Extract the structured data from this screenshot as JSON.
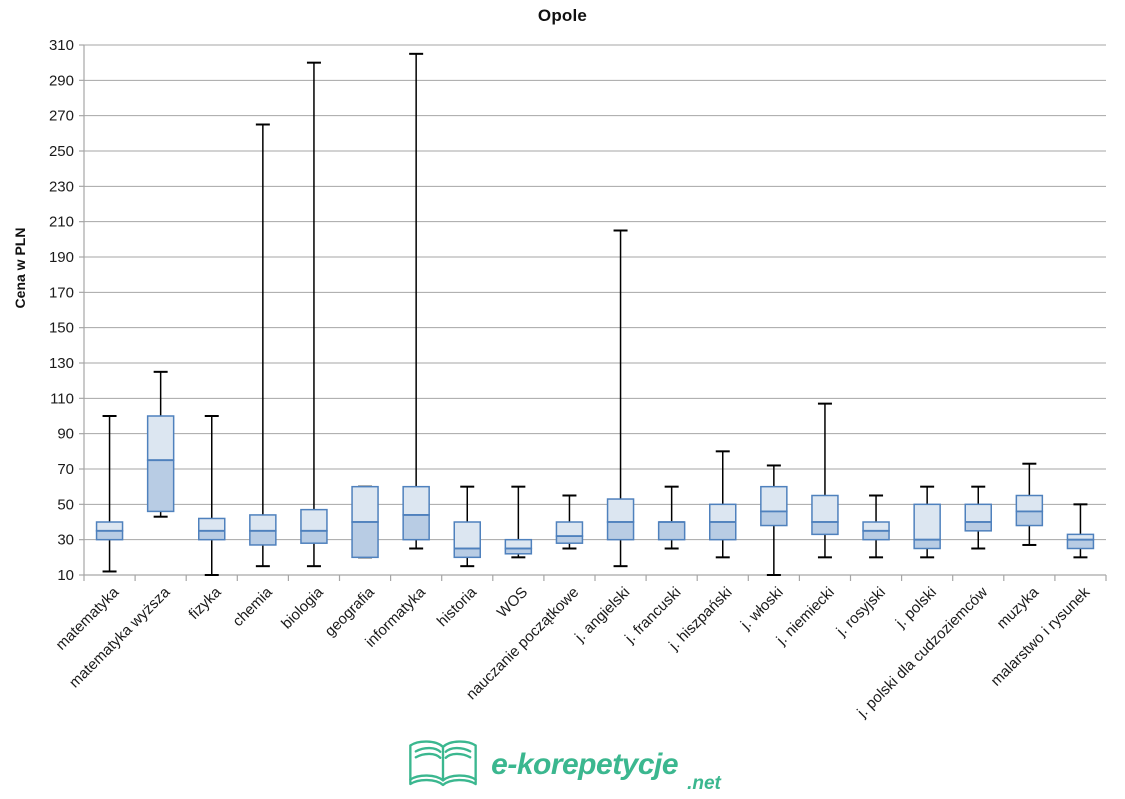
{
  "title": "Opole",
  "y_axis": {
    "label": "Cena w PLN"
  },
  "chart_data": {
    "type": "boxplot",
    "title": "Opole",
    "xlabel": "",
    "ylabel": "Cena w PLN",
    "ylim": [
      10,
      310
    ],
    "ytick_step": 20,
    "grid": true,
    "legend": false,
    "categories": [
      "matematyka",
      "matematyka wyższa",
      "fizyka",
      "chemia",
      "biologia",
      "geografia",
      "informatyka",
      "historia",
      "WOS",
      "nauczanie początkowe",
      "j. angielski",
      "j. francuski",
      "j. hiszpański",
      "j. włoski",
      "j. niemiecki",
      "j. rosyjski",
      "j. polski",
      "j. polski dla cudzoziemców",
      "muzyka",
      "malarstwo i rysunek"
    ],
    "boxes": [
      {
        "category": "matematyka",
        "min": 12,
        "q1": 30,
        "median": 35,
        "q3": 40,
        "max": 100
      },
      {
        "category": "matematyka wyższa",
        "min": 43,
        "q1": 46,
        "median": 75,
        "q3": 100,
        "max": 125
      },
      {
        "category": "fizyka",
        "min": 10,
        "q1": 30,
        "median": 35,
        "q3": 42,
        "max": 100
      },
      {
        "category": "chemia",
        "min": 15,
        "q1": 27,
        "median": 35,
        "q3": 44,
        "max": 265
      },
      {
        "category": "biologia",
        "min": 15,
        "q1": 28,
        "median": 35,
        "q3": 47,
        "max": 300
      },
      {
        "category": "geografia",
        "min": 20,
        "q1": 20,
        "median": 40,
        "q3": 60,
        "max": 60
      },
      {
        "category": "informatyka",
        "min": 25,
        "q1": 30,
        "median": 44,
        "q3": 60,
        "max": 305
      },
      {
        "category": "historia",
        "min": 15,
        "q1": 20,
        "median": 25,
        "q3": 40,
        "max": 60
      },
      {
        "category": "WOS",
        "min": 20,
        "q1": 22,
        "median": 25,
        "q3": 30,
        "max": 60
      },
      {
        "category": "nauczanie początkowe",
        "min": 25,
        "q1": 28,
        "median": 32,
        "q3": 40,
        "max": 55
      },
      {
        "category": "j. angielski",
        "min": 15,
        "q1": 30,
        "median": 40,
        "q3": 53,
        "max": 205
      },
      {
        "category": "j. francuski",
        "min": 25,
        "q1": 30,
        "median": 40,
        "q3": 40,
        "max": 60
      },
      {
        "category": "j. hiszpański",
        "min": 20,
        "q1": 30,
        "median": 40,
        "q3": 50,
        "max": 80
      },
      {
        "category": "j. włoski",
        "min": 10,
        "q1": 38,
        "median": 46,
        "q3": 60,
        "max": 72
      },
      {
        "category": "j. niemiecki",
        "min": 20,
        "q1": 33,
        "median": 40,
        "q3": 55,
        "max": 107
      },
      {
        "category": "j. rosyjski",
        "min": 20,
        "q1": 30,
        "median": 35,
        "q3": 40,
        "max": 55
      },
      {
        "category": "j. polski",
        "min": 20,
        "q1": 25,
        "median": 30,
        "q3": 50,
        "max": 60
      },
      {
        "category": "j. polski dla cudzoziemców",
        "min": 25,
        "q1": 35,
        "median": 40,
        "q3": 50,
        "max": 60
      },
      {
        "category": "muzyka",
        "min": 27,
        "q1": 38,
        "median": 46,
        "q3": 55,
        "max": 73
      },
      {
        "category": "malarstwo i rysunek",
        "min": 20,
        "q1": 25,
        "median": 30,
        "q3": 33,
        "max": 50
      }
    ]
  },
  "colors": {
    "box_fill_upper": "#DCE6F1",
    "box_fill_lower": "#B8CCE4",
    "box_border": "#4F81BD",
    "whisker": "#000000",
    "gridline": "#A6A6A6",
    "axis": "#A6A6A6",
    "text": "#1A1A1A",
    "brand_green": "#3BB78F"
  },
  "footer": {
    "brand": "e-korepetycje",
    "tld": ".net"
  }
}
